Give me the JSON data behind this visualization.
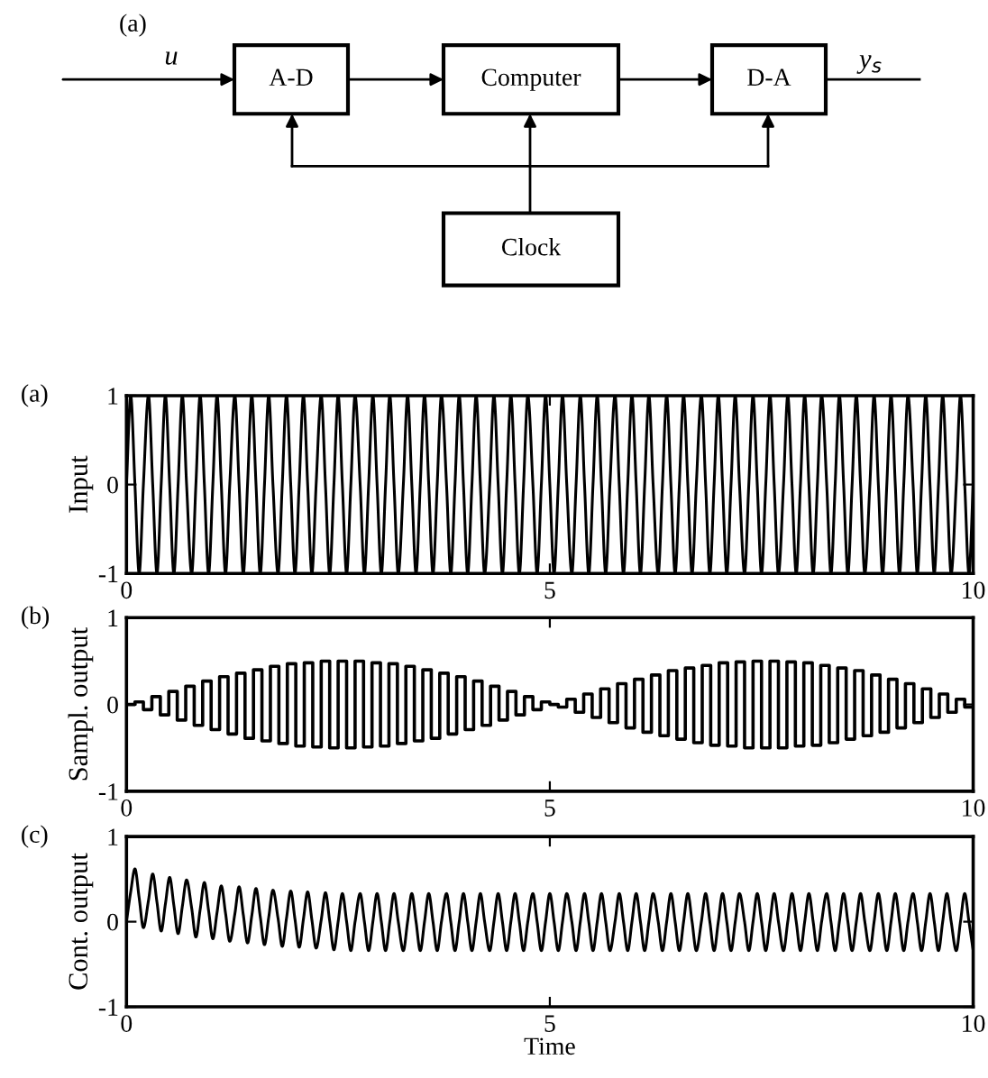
{
  "chart_data": [
    {
      "type": "other",
      "annotations": [
        "(a)",
        "u",
        "A-D",
        "Computer",
        "D-A",
        "y$_{s}$",
        "Clock"
      ]
    },
    {
      "type": "line",
      "annotations": [
        "(a)"
      ],
      "ylabel": "Input",
      "xlim": [
        0,
        10
      ],
      "ylim": [
        -1,
        1
      ],
      "xticks": [
        0,
        5,
        10
      ],
      "yticks": [
        -1,
        0,
        1
      ],
      "x": [
        0,
        0.05,
        0.1,
        0.15,
        0.2,
        0.26,
        0.31,
        0.36,
        0.41,
        0.46,
        0.51,
        0.56,
        0.61,
        0.66,
        0.71,
        0.77,
        0.82,
        0.87,
        0.92,
        0.97,
        1.02,
        1.07,
        1.12,
        1.17,
        1.22,
        1.28,
        1.33,
        1.38,
        1.43,
        1.48,
        1.53,
        1.58,
        1.63,
        1.68,
        1.73,
        1.79,
        1.84,
        1.89,
        1.94,
        1.99,
        2.04,
        2.09,
        2.14,
        2.19,
        2.24,
        2.3,
        2.35,
        2.4,
        2.45,
        2.5,
        2.55,
        2.6,
        2.65,
        2.7,
        2.76,
        2.81,
        2.86,
        2.91,
        2.96,
        3.01,
        3.06,
        3.11,
        3.16,
        3.21,
        3.27,
        3.32,
        3.37,
        3.42,
        3.47,
        3.52,
        3.57,
        3.62,
        3.67,
        3.72,
        3.78,
        3.83,
        3.88,
        3.93,
        3.98,
        4.03,
        4.08,
        4.13,
        4.18,
        4.23,
        4.29,
        4.34,
        4.39,
        4.44,
        4.49,
        4.54,
        4.59,
        4.64,
        4.69,
        4.74,
        4.8,
        4.85,
        4.9,
        4.95,
        5,
        5.05,
        5.1,
        5.15,
        5.2,
        5.26,
        5.31,
        5.36,
        5.41,
        5.46,
        5.51,
        5.56,
        5.61,
        5.66,
        5.71,
        5.77,
        5.82,
        5.87,
        5.92,
        5.97,
        6.02,
        6.07,
        6.12,
        6.17,
        6.22,
        6.28,
        6.33,
        6.38,
        6.43,
        6.48,
        6.53,
        6.58,
        6.63,
        6.68,
        6.73,
        6.79,
        6.84,
        6.89,
        6.94,
        6.99,
        7.04,
        7.09,
        7.14,
        7.19,
        7.24,
        7.3,
        7.35,
        7.4,
        7.45,
        7.5,
        7.55,
        7.6,
        7.65,
        7.7,
        7.76,
        7.81,
        7.86,
        7.91,
        7.96,
        8.01,
        8.06,
        8.11,
        8.16,
        8.21,
        8.27,
        8.32,
        8.37,
        8.42,
        8.47,
        8.52,
        8.57,
        8.62,
        8.67,
        8.72,
        8.78,
        8.83,
        8.88,
        8.93,
        8.98,
        9.03,
        9.08,
        9.13,
        9.18,
        9.23,
        9.29,
        9.34,
        9.39,
        9.44,
        9.49,
        9.54,
        9.59,
        9.64,
        9.69,
        9.74,
        9.8,
        9.85,
        9.9,
        9.95,
        10
      ],
      "series": [
        {
          "color": "#000000",
          "values": [
            0,
            1,
            0,
            -1,
            0,
            1,
            0,
            -1,
            0,
            1,
            0,
            -1,
            0,
            1,
            0,
            -1,
            0,
            1,
            0,
            -1,
            0,
            1,
            0,
            -1,
            0,
            1,
            0,
            -1,
            0,
            1,
            0,
            -1,
            0,
            1,
            0,
            -1,
            0,
            1,
            0,
            -1,
            0,
            1,
            0,
            -1,
            0,
            1,
            0,
            -1,
            0,
            1,
            0,
            -1,
            0,
            1,
            0,
            -1,
            0,
            1,
            0,
            -1,
            0,
            1,
            0,
            -1,
            0,
            1,
            0,
            -1,
            0,
            1,
            0,
            -1,
            0,
            1,
            0,
            -1,
            0,
            1,
            0,
            -1,
            0,
            1,
            0,
            -1,
            0,
            1,
            0,
            -1,
            0,
            1,
            0,
            -1,
            0,
            1,
            0,
            -1,
            0,
            1,
            0,
            -1,
            0,
            1,
            0,
            -1,
            0,
            1,
            0,
            -1,
            0,
            1,
            0,
            -1,
            0,
            1,
            0,
            -1,
            0,
            1,
            0,
            -1,
            0,
            1,
            0,
            -1,
            0,
            1,
            0,
            -1,
            0,
            1,
            0,
            -1,
            0,
            1,
            0,
            -1,
            0,
            1,
            0,
            -1,
            0,
            1,
            0,
            -1,
            0,
            1,
            0,
            -1,
            0,
            1,
            0,
            -1,
            0,
            1,
            0,
            -1,
            0,
            1,
            0,
            -1,
            0,
            1,
            0,
            -1,
            0,
            1,
            0,
            -1,
            0,
            1,
            0,
            -1,
            0,
            1,
            0,
            -1,
            0,
            1,
            0,
            -1,
            0,
            1,
            0,
            -1,
            0,
            1,
            0,
            -1,
            0,
            1,
            0,
            -1,
            0,
            1,
            0,
            -1,
            0
          ]
        }
      ]
    },
    {
      "type": "step",
      "annotations": [
        "(b)"
      ],
      "ylabel": "Sampl. output",
      "xlim": [
        0,
        10
      ],
      "ylim": [
        -1,
        1
      ],
      "xticks": [
        0,
        5,
        10
      ],
      "yticks": [
        -1,
        0,
        1
      ],
      "x": [
        0,
        0.1,
        0.2,
        0.3,
        0.4,
        0.5,
        0.6,
        0.7,
        0.8,
        0.9,
        1,
        1.1,
        1.2,
        1.3,
        1.4,
        1.5,
        1.6,
        1.7,
        1.8,
        1.9,
        2,
        2.1,
        2.2,
        2.3,
        2.4,
        2.5,
        2.6,
        2.7,
        2.8,
        2.9,
        3,
        3.1,
        3.2,
        3.3,
        3.4,
        3.5,
        3.6,
        3.7,
        3.8,
        3.9,
        4,
        4.1,
        4.2,
        4.3,
        4.4,
        4.5,
        4.6,
        4.7,
        4.8,
        4.9,
        5,
        5.1,
        5.2,
        5.3,
        5.4,
        5.5,
        5.6,
        5.7,
        5.8,
        5.9,
        6,
        6.1,
        6.2,
        6.3,
        6.4,
        6.5,
        6.6,
        6.7,
        6.8,
        6.9,
        7,
        7.1,
        7.2,
        7.3,
        7.4,
        7.5,
        7.6,
        7.7,
        7.8,
        7.9,
        8,
        8.1,
        8.2,
        8.3,
        8.4,
        8.5,
        8.6,
        8.7,
        8.8,
        8.9,
        9,
        9.1,
        9.2,
        9.3,
        9.4,
        9.5,
        9.6,
        9.7,
        9.8,
        9.9,
        10
      ],
      "series": [
        {
          "color": "#000000",
          "values": [
            0,
            0.03,
            -0.06,
            0.09,
            -0.12,
            0.15,
            -0.18,
            0.21,
            -0.24,
            0.27,
            -0.29,
            0.32,
            -0.34,
            0.36,
            -0.39,
            0.4,
            -0.42,
            0.44,
            -0.45,
            0.47,
            -0.48,
            0.48,
            -0.49,
            0.5,
            -0.5,
            0.5,
            -0.5,
            0.5,
            -0.49,
            0.48,
            -0.48,
            0.47,
            -0.45,
            0.44,
            -0.42,
            0.4,
            -0.39,
            0.36,
            -0.34,
            0.32,
            -0.29,
            0.27,
            -0.24,
            0.21,
            -0.18,
            0.15,
            -0.12,
            0.09,
            -0.06,
            0.03,
            0,
            -0.03,
            0.06,
            -0.09,
            0.12,
            -0.15,
            0.18,
            -0.21,
            0.24,
            -0.27,
            0.29,
            -0.32,
            0.34,
            -0.36,
            0.39,
            -0.4,
            0.42,
            -0.44,
            0.45,
            -0.47,
            0.48,
            -0.48,
            0.49,
            -0.5,
            0.5,
            -0.5,
            0.5,
            -0.5,
            0.49,
            -0.48,
            0.48,
            -0.47,
            0.45,
            -0.44,
            0.42,
            -0.4,
            0.39,
            -0.36,
            0.34,
            -0.32,
            0.29,
            -0.27,
            0.24,
            -0.21,
            0.18,
            -0.15,
            0.12,
            -0.09,
            0.06,
            -0.03,
            -0.03
          ]
        }
      ]
    },
    {
      "type": "line",
      "annotations": [
        "(c)"
      ],
      "ylabel": "Cont. output",
      "xlabel": "Time",
      "xlim": [
        0,
        10
      ],
      "ylim": [
        -1,
        1
      ],
      "xticks": [
        0,
        5,
        10
      ],
      "yticks": [
        -1,
        0,
        1
      ],
      "x": [
        0,
        0.05,
        0.1,
        0.15,
        0.2,
        0.26,
        0.31,
        0.36,
        0.41,
        0.46,
        0.51,
        0.56,
        0.61,
        0.66,
        0.71,
        0.77,
        0.82,
        0.87,
        0.92,
        0.97,
        1.02,
        1.07,
        1.12,
        1.17,
        1.22,
        1.28,
        1.33,
        1.38,
        1.43,
        1.48,
        1.53,
        1.58,
        1.63,
        1.68,
        1.73,
        1.79,
        1.84,
        1.89,
        1.94,
        1.99,
        2.04,
        2.09,
        2.14,
        2.19,
        2.24,
        2.3,
        2.35,
        2.4,
        2.45,
        2.5,
        2.55,
        2.6,
        2.65,
        2.7,
        2.76,
        2.81,
        2.86,
        2.91,
        2.96,
        3.01,
        3.06,
        3.11,
        3.16,
        3.21,
        3.27,
        3.32,
        3.37,
        3.42,
        3.47,
        3.52,
        3.57,
        3.62,
        3.67,
        3.72,
        3.78,
        3.83,
        3.88,
        3.93,
        3.98,
        4.03,
        4.08,
        4.13,
        4.18,
        4.23,
        4.29,
        4.34,
        4.39,
        4.44,
        4.49,
        4.54,
        4.59,
        4.64,
        4.69,
        4.74,
        4.8,
        4.85,
        4.9,
        4.95,
        5,
        5.05,
        5.1,
        5.15,
        5.2,
        5.26,
        5.31,
        5.36,
        5.41,
        5.46,
        5.51,
        5.56,
        5.61,
        5.66,
        5.71,
        5.77,
        5.82,
        5.87,
        5.92,
        5.97,
        6.02,
        6.07,
        6.12,
        6.17,
        6.22,
        6.28,
        6.33,
        6.38,
        6.43,
        6.48,
        6.53,
        6.58,
        6.63,
        6.68,
        6.73,
        6.79,
        6.84,
        6.89,
        6.94,
        6.99,
        7.04,
        7.09,
        7.14,
        7.19,
        7.24,
        7.3,
        7.35,
        7.4,
        7.45,
        7.5,
        7.55,
        7.6,
        7.65,
        7.7,
        7.76,
        7.81,
        7.86,
        7.91,
        7.96,
        8.01,
        8.06,
        8.11,
        8.16,
        8.21,
        8.27,
        8.32,
        8.37,
        8.42,
        8.47,
        8.52,
        8.57,
        8.62,
        8.67,
        8.72,
        8.78,
        8.83,
        8.88,
        8.93,
        8.98,
        9.03,
        9.08,
        9.13,
        9.18,
        9.23,
        9.29,
        9.34,
        9.39,
        9.44,
        9.49,
        9.54,
        9.59,
        9.64,
        9.69,
        9.74,
        9.8,
        9.85,
        9.9,
        9.95,
        10
      ],
      "series": [
        {
          "color": "#000000",
          "values": [
            0,
            0.35,
            0.62,
            0.28,
            -0.07,
            0.25,
            0.56,
            0.23,
            -0.11,
            0.21,
            0.52,
            0.19,
            -0.14,
            0.18,
            0.49,
            0.16,
            -0.18,
            0.14,
            0.46,
            0.13,
            -0.2,
            0.11,
            0.42,
            0.1,
            -0.23,
            0.09,
            0.41,
            0.08,
            -0.25,
            0.07,
            0.39,
            0.06,
            -0.27,
            0.05,
            0.37,
            0.04,
            -0.29,
            0.04,
            0.36,
            0.03,
            -0.3,
            0.03,
            0.35,
            0.02,
            -0.31,
            0.02,
            0.34,
            0.01,
            -0.33,
            0,
            0.33,
            0,
            -0.34,
            0,
            0.33,
            0,
            -0.34,
            0,
            0.33,
            0,
            -0.34,
            0,
            0.33,
            0,
            -0.34,
            0,
            0.33,
            0,
            -0.34,
            0,
            0.33,
            0,
            -0.34,
            0,
            0.33,
            0,
            -0.34,
            0,
            0.33,
            0,
            -0.34,
            0,
            0.33,
            0,
            -0.34,
            0,
            0.33,
            0,
            -0.34,
            0,
            0.33,
            0,
            -0.34,
            0,
            0.33,
            0,
            -0.34,
            0,
            0.33,
            0,
            -0.34,
            0,
            0.33,
            0,
            -0.34,
            0,
            0.33,
            0,
            -0.34,
            0,
            0.33,
            0,
            -0.34,
            0,
            0.33,
            0,
            -0.34,
            0,
            0.33,
            0,
            -0.34,
            0,
            0.33,
            0,
            -0.34,
            0,
            0.33,
            0,
            -0.34,
            0,
            0.33,
            0,
            -0.34,
            0,
            0.33,
            0,
            -0.34,
            0,
            0.33,
            0,
            -0.34,
            0,
            0.33,
            0,
            -0.34,
            0,
            0.33,
            0,
            -0.34,
            0,
            0.33,
            0,
            -0.34,
            0,
            0.33,
            0,
            -0.34,
            0,
            0.33,
            0,
            -0.34,
            0,
            0.33,
            0,
            -0.34,
            0,
            0.33,
            0,
            -0.34,
            0,
            0.33,
            0,
            -0.34,
            0,
            0.33,
            0,
            -0.34,
            0,
            0.33,
            0,
            -0.34,
            0,
            0.33,
            0,
            -0.34,
            0,
            0.33,
            0,
            -0.34,
            0,
            0.33,
            0,
            -0.34,
            0,
            0.33,
            0,
            -0.34
          ]
        }
      ]
    }
  ]
}
